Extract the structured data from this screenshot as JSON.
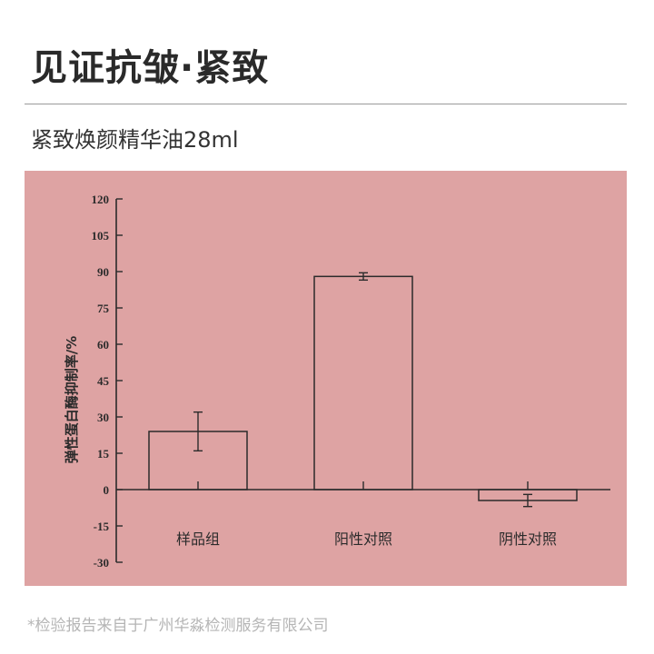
{
  "header": {
    "title": "见证抗皱·紧致",
    "subtitle": "紧致焕颜精华油28ml"
  },
  "footnote": "*检验报告来自于广州华淼检测服务有限公司",
  "colors": {
    "chart_background": "#dea3a3",
    "ink": "#2b2b2b"
  },
  "chart_data": {
    "type": "bar",
    "title": "",
    "xlabel": "",
    "ylabel": "弹性蛋白酶抑制率/%",
    "categories": [
      "样品组",
      "阳性对照",
      "阴性对照"
    ],
    "values": [
      24,
      88,
      -4.5
    ],
    "errors": [
      8,
      1.5,
      2.5
    ],
    "ylim": [
      -30,
      120
    ],
    "yticks": [
      120,
      105,
      90,
      75,
      60,
      45,
      30,
      15,
      0,
      -15,
      -30
    ],
    "grid": false
  }
}
